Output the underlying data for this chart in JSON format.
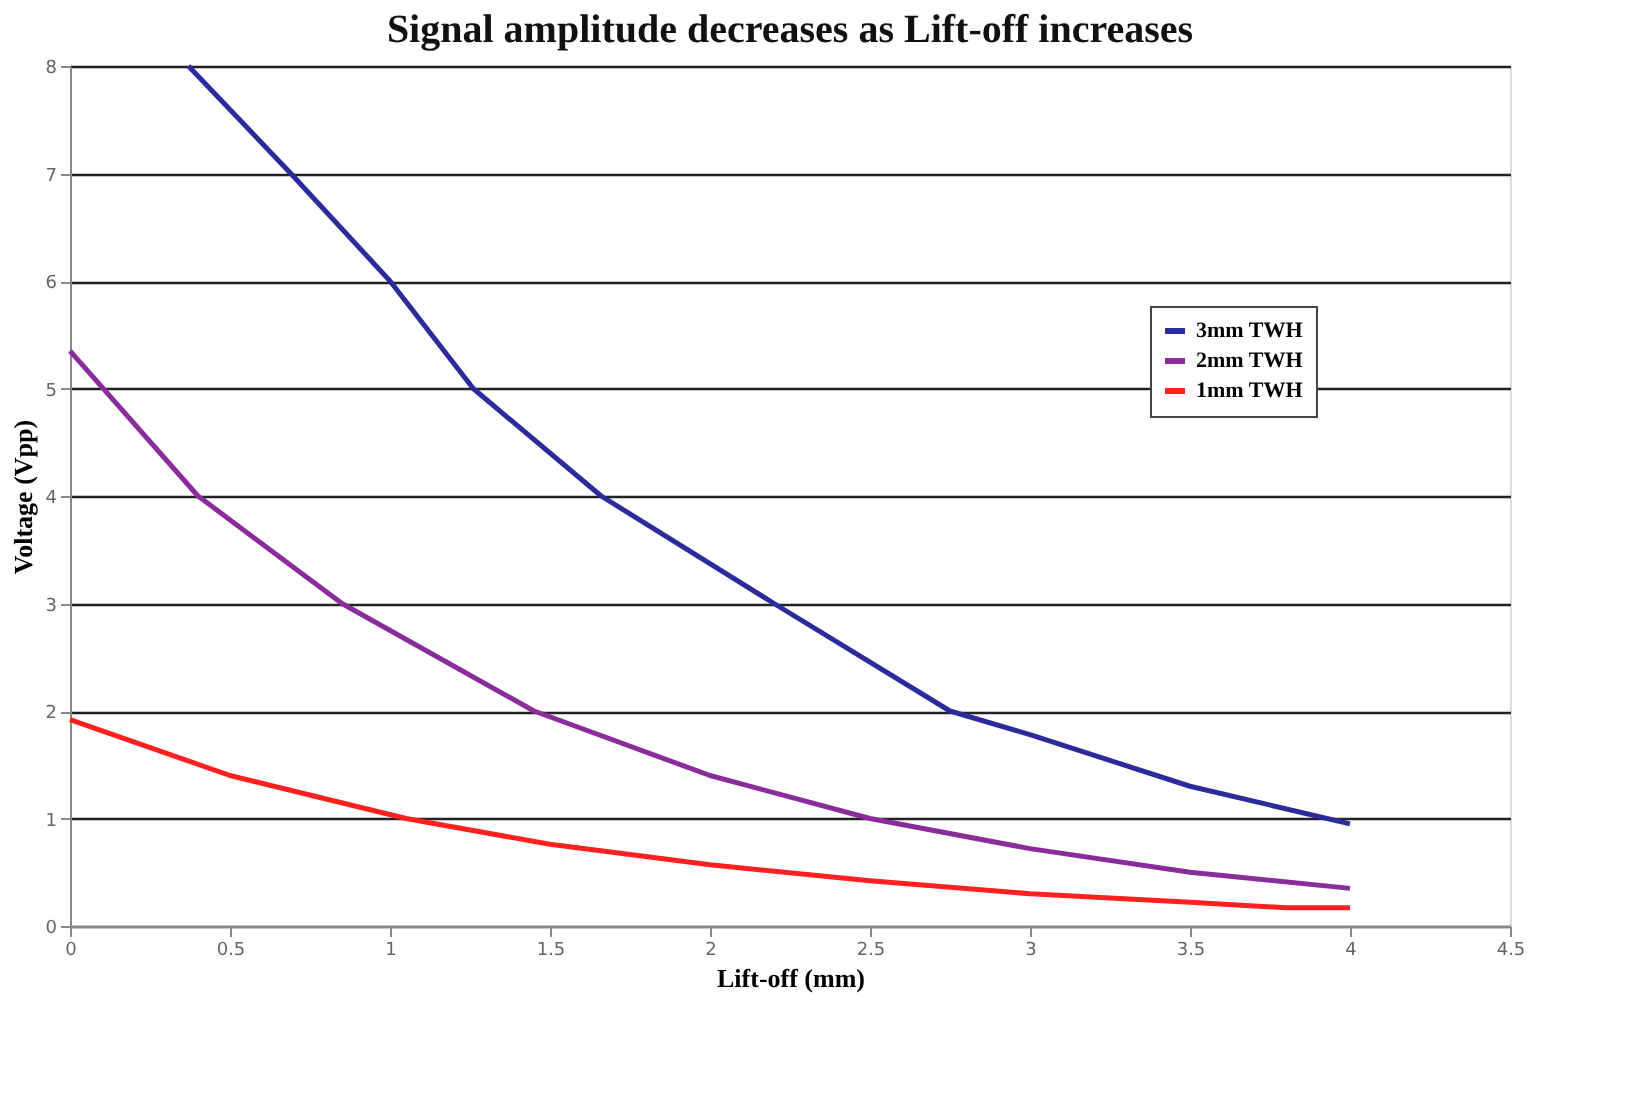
{
  "chart_data": {
    "type": "line",
    "title": "Signal amplitude decreases as Lift-off increases",
    "xlabel": "Lift-off (mm)",
    "ylabel": "Voltage (Vpp)",
    "xlim": [
      0,
      4.5
    ],
    "xticks": [
      0,
      0.5,
      1,
      1.5,
      2,
      2.5,
      3,
      3.5,
      4,
      4.5
    ],
    "ylim": [
      0,
      8
    ],
    "yticks": [
      0,
      1,
      2,
      3,
      4,
      5,
      6,
      7,
      8
    ],
    "grid": "y",
    "legend": "right",
    "marker": "none",
    "line_style": "solid",
    "series": [
      {
        "name": "3mm TWH",
        "color": "#2b2b9b",
        "x": [
          0.37,
          0.69,
          1.0,
          1.26,
          1.66,
          2.2,
          2.75,
          3.0,
          3.5,
          4.0
        ],
        "values": [
          8,
          7,
          6,
          5,
          4,
          3,
          2,
          1.78,
          1.3,
          0.95
        ]
      },
      {
        "name": "2mm TWH",
        "color": "#8b2c9b",
        "x": [
          0,
          0.4,
          0.85,
          1.45,
          2.0,
          2.5,
          3.0,
          3.5,
          4.0
        ],
        "values": [
          5.35,
          4,
          3,
          2,
          1.4,
          1,
          0.72,
          0.5,
          0.35
        ]
      },
      {
        "name": "1mm TWH",
        "color": "#ff2020",
        "x": [
          0,
          0.5,
          1.05,
          1.5,
          2.0,
          2.5,
          3.0,
          3.5,
          3.8,
          4.0
        ],
        "values": [
          1.92,
          1.4,
          1,
          0.76,
          0.57,
          0.42,
          0.3,
          0.22,
          0.17,
          0.17
        ]
      }
    ]
  }
}
